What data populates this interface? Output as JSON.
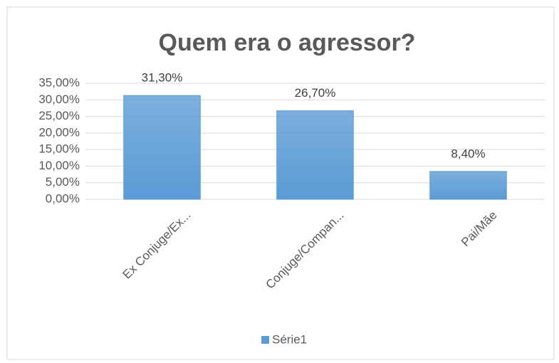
{
  "chart_data": {
    "type": "bar",
    "title": "Quem era o agressor?",
    "categories": [
      "Ex Conjuge/Ex...",
      "Conjuge/Compan...",
      "Pai/Mãe"
    ],
    "series": [
      {
        "name": "Série1",
        "color": "#5b9bd5",
        "values": [
          31.3,
          26.7,
          8.4
        ],
        "value_labels": [
          "31,30%",
          "26,70%",
          "8,40%"
        ]
      }
    ],
    "ylim": [
      0,
      35
    ],
    "yticks": [
      {
        "value": 0,
        "label": "0,00%"
      },
      {
        "value": 5,
        "label": "5,00%"
      },
      {
        "value": 10,
        "label": "10,00%"
      },
      {
        "value": 15,
        "label": "15,00%"
      },
      {
        "value": 20,
        "label": "20,00%"
      },
      {
        "value": 25,
        "label": "25,00%"
      },
      {
        "value": 30,
        "label": "30,00%"
      },
      {
        "value": 35,
        "label": "35,00%"
      }
    ],
    "grid": true,
    "legend": "bottom"
  }
}
